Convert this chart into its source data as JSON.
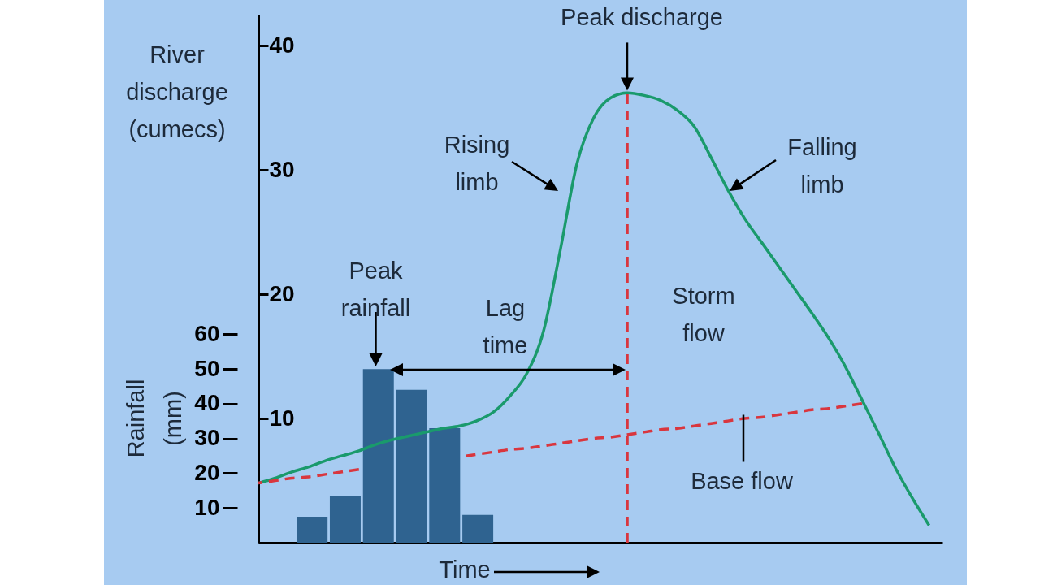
{
  "chart_data": {
    "type": "line",
    "xlabel": "Time",
    "ylabel": "Rainfall (mm)",
    "categories": [
      null,
      null,
      null,
      null,
      null,
      null,
      null,
      null,
      null,
      null,
      null,
      null,
      null,
      null,
      null,
      null,
      null,
      null,
      null,
      null,
      null,
      null,
      null,
      null,
      null,
      null,
      null,
      null,
      null,
      null,
      null,
      null,
      null,
      null,
      null,
      null,
      null,
      null,
      null,
      null,
      null
    ],
    "ylim": [
      0,
      152
    ],
    "yticks": [
      10,
      20,
      30,
      40,
      50,
      60
    ],
    "y2lim": [
      0,
      42.5
    ],
    "y2ticks": [
      10,
      20,
      30,
      40
    ],
    "tick_labels": "y",
    "series": [
      {
        "type": "bar",
        "axis": "y",
        "color": "#2f6390",
        "values": [
          null,
          null,
          null,
          7.5,
          null,
          13.5,
          null,
          50,
          null,
          44,
          null,
          33,
          null,
          8,
          null,
          null,
          null,
          null,
          null,
          null,
          null,
          null,
          null,
          null,
          null,
          null,
          null,
          null,
          null,
          null,
          null,
          null,
          null,
          null,
          null,
          null,
          null,
          null,
          null,
          null,
          null
        ]
      },
      {
        "axis": "y2",
        "color": "#1a9a6c",
        "line_style": "solid",
        "values": [
          4.8,
          5.2,
          5.7,
          6.1,
          6.6,
          7.0,
          7.4,
          7.9,
          8.3,
          8.6,
          8.9,
          9.2,
          9.4,
          9.8,
          10.5,
          11.8,
          13.6,
          17.0,
          23.5,
          30.5,
          34.2,
          35.8,
          36.2,
          36.0,
          35.6,
          34.8,
          33.5,
          31.0,
          28.4,
          26.1,
          24.2,
          22.3,
          20.4,
          18.5,
          16.5,
          14.2,
          11.5,
          8.8,
          6.0,
          3.6,
          1.4
        ]
      },
      {
        "axis": "y2",
        "color": "#d9363e",
        "line_style": "dashed",
        "values": [
          4.8,
          5.0,
          5.2,
          5.3,
          5.5,
          5.7,
          5.9,
          null,
          null,
          null,
          null,
          null,
          6.9,
          7.1,
          7.3,
          7.5,
          7.6,
          7.8,
          8.0,
          8.2,
          8.4,
          8.5,
          8.7,
          8.9,
          9.1,
          9.2,
          9.4,
          9.6,
          9.8,
          10.0,
          10.1,
          10.3,
          10.5,
          10.7,
          10.8,
          11.0,
          11.2,
          null,
          null,
          null,
          null
        ]
      }
    ],
    "annotations": [
      "River discharge (cumecs)",
      "Peak discharge",
      "Rising limb",
      "Falling limb",
      "Peak rainfall",
      "Lag time",
      "Storm flow",
      "Base flow"
    ]
  }
}
